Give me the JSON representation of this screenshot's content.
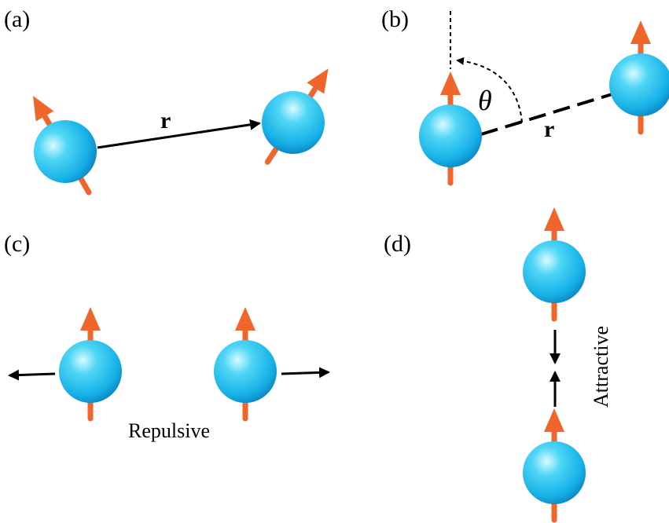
{
  "panels": [
    {
      "label": "(a)",
      "vector_label": "r"
    },
    {
      "label": "(b)",
      "angle_label": "θ",
      "vector_label": "r"
    },
    {
      "label": "(c)",
      "annotation": "Repulsive"
    },
    {
      "label": "(d)",
      "annotation": "Attractive"
    }
  ]
}
